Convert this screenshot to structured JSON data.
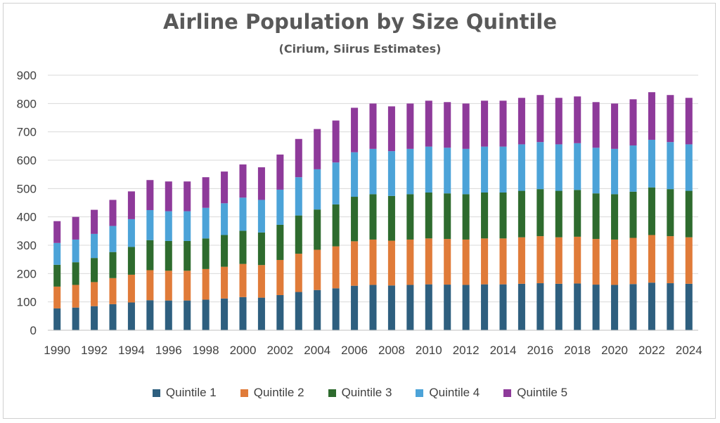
{
  "chart_data": {
    "type": "bar",
    "stacked": true,
    "title": "Airline Population by Size Quintile",
    "subtitle": "(Cirium, Siirus Estimates)",
    "xlabel": "",
    "ylabel": "",
    "ylim": [
      0,
      900
    ],
    "yticks": [
      0,
      100,
      200,
      300,
      400,
      500,
      600,
      700,
      800,
      900
    ],
    "xtick_labels": [
      "1990",
      "1992",
      "1994",
      "1996",
      "1998",
      "2000",
      "2002",
      "2004",
      "2006",
      "2008",
      "2010",
      "2012",
      "2014",
      "2016",
      "2018",
      "2020",
      "2022",
      "2024"
    ],
    "grid": true,
    "legend": "bottom",
    "categories": [
      "1990",
      "1991",
      "1992",
      "1993",
      "1994",
      "1995",
      "1996",
      "1997",
      "1998",
      "1999",
      "2000",
      "2001",
      "2002",
      "2003",
      "2004",
      "2005",
      "2006",
      "2007",
      "2008",
      "2009",
      "2010",
      "2011",
      "2012",
      "2013",
      "2014",
      "2015",
      "2016",
      "2017",
      "2018",
      "2019",
      "2020",
      "2021",
      "2022",
      "2023",
      "2024"
    ],
    "series": [
      {
        "name": "Quintile 1",
        "color": "#2e5f7f",
        "values": [
          77,
          80,
          85,
          92,
          98,
          106,
          105,
          105,
          108,
          112,
          117,
          115,
          124,
          135,
          142,
          148,
          157,
          160,
          158,
          160,
          162,
          161,
          160,
          162,
          162,
          164,
          166,
          164,
          165,
          161,
          160,
          163,
          168,
          166,
          164
        ]
      },
      {
        "name": "Quintile 2",
        "color": "#e07b39",
        "values": [
          77,
          80,
          85,
          92,
          98,
          106,
          105,
          105,
          108,
          112,
          117,
          115,
          124,
          135,
          142,
          148,
          157,
          160,
          158,
          160,
          162,
          161,
          160,
          162,
          162,
          164,
          166,
          164,
          165,
          161,
          160,
          163,
          168,
          166,
          164
        ]
      },
      {
        "name": "Quintile 3",
        "color": "#2e6b2e",
        "values": [
          77,
          80,
          85,
          92,
          98,
          106,
          105,
          105,
          108,
          112,
          117,
          115,
          124,
          135,
          142,
          148,
          157,
          160,
          158,
          160,
          162,
          161,
          160,
          162,
          162,
          164,
          166,
          164,
          165,
          161,
          160,
          163,
          168,
          166,
          164
        ]
      },
      {
        "name": "Quintile 4",
        "color": "#4ca3d8",
        "values": [
          77,
          80,
          85,
          92,
          98,
          106,
          105,
          105,
          108,
          112,
          117,
          115,
          124,
          135,
          142,
          148,
          157,
          160,
          158,
          160,
          162,
          161,
          160,
          162,
          162,
          164,
          166,
          164,
          165,
          161,
          160,
          163,
          168,
          166,
          164
        ]
      },
      {
        "name": "Quintile 5",
        "color": "#8e3a9a",
        "values": [
          77,
          80,
          85,
          92,
          98,
          106,
          105,
          105,
          108,
          112,
          117,
          115,
          124,
          135,
          142,
          148,
          157,
          160,
          158,
          160,
          162,
          161,
          160,
          162,
          162,
          164,
          166,
          164,
          165,
          161,
          160,
          163,
          168,
          166,
          164
        ]
      }
    ]
  }
}
